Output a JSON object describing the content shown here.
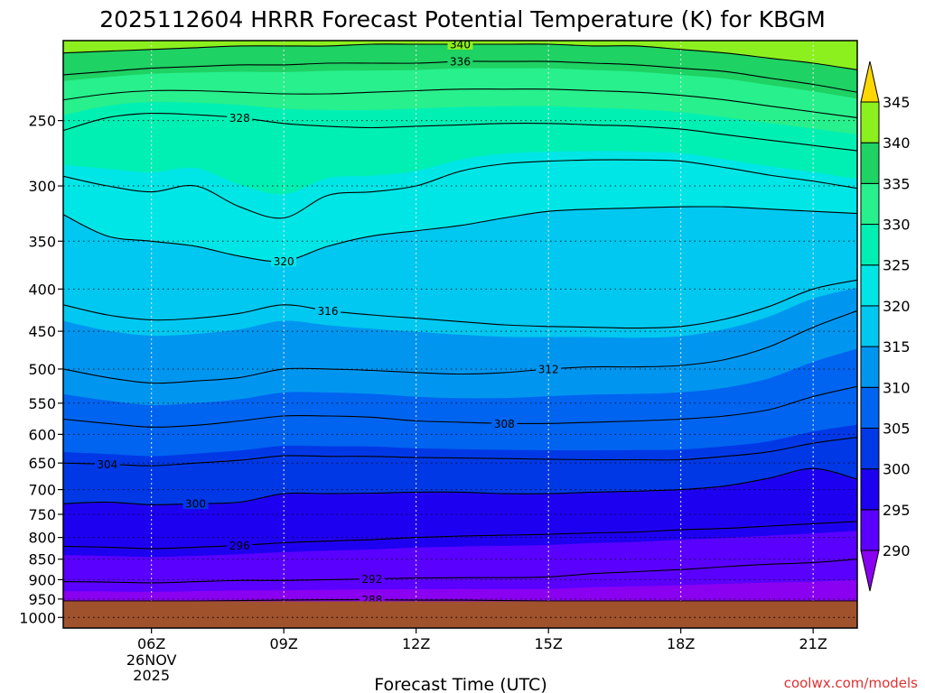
{
  "chart_data": {
    "type": "contour",
    "title": "2025112604 HRRR Forecast Potential Temperature (K) for KBGM",
    "xlabel": "Forecast Time (UTC)",
    "ylabel": "",
    "credit": "coolwx.com/models",
    "x_ticks": [
      {
        "hour": 6,
        "label": "06Z",
        "sub": [
          "26NOV",
          "2025"
        ]
      },
      {
        "hour": 9,
        "label": "09Z"
      },
      {
        "hour": 12,
        "label": "12Z"
      },
      {
        "hour": 15,
        "label": "15Z"
      },
      {
        "hour": 18,
        "label": "18Z"
      },
      {
        "hour": 21,
        "label": "21Z"
      }
    ],
    "xlim": [
      4,
      22
    ],
    "y_ticks": [
      250,
      300,
      350,
      400,
      450,
      500,
      550,
      600,
      650,
      700,
      750,
      800,
      850,
      900,
      950,
      1000
    ],
    "ylim": [
      200,
      1030
    ],
    "y_scale": "log",
    "grid": true,
    "surface_pressure_hpa": 956,
    "colorbar": {
      "levels": [
        290,
        295,
        300,
        305,
        310,
        315,
        320,
        325,
        330,
        335,
        340,
        345
      ],
      "colors": [
        "#8a00f0",
        "#5a00ff",
        "#1e00f0",
        "#0038e6",
        "#0064f0",
        "#0096f0",
        "#00c8f0",
        "#00e6e6",
        "#00f0b4",
        "#28f08c",
        "#1ed264",
        "#8cf01e",
        "#d2f01e",
        "#ffd700"
      ]
    },
    "times": [
      4,
      5,
      6,
      7,
      8,
      9,
      10,
      11,
      12,
      13,
      14,
      15,
      16,
      17,
      18,
      19,
      20,
      21,
      22
    ],
    "isentropes": [
      {
        "theta": 288,
        "label_at": 11,
        "p": [
          955,
          955,
          955,
          955,
          954,
          953,
          952,
          952,
          953,
          953,
          954,
          955,
          955,
          955,
          955,
          955,
          955,
          955,
          955
        ]
      },
      {
        "theta": 292,
        "label_at": 11,
        "p": [
          905,
          906,
          908,
          905,
          902,
          902,
          900,
          898,
          896,
          895,
          895,
          893,
          885,
          880,
          875,
          868,
          862,
          858,
          850
        ]
      },
      {
        "theta": 296,
        "label_at": 8,
        "p": [
          820,
          822,
          825,
          822,
          818,
          812,
          808,
          805,
          800,
          797,
          795,
          793,
          790,
          788,
          783,
          780,
          775,
          770,
          765
        ]
      },
      {
        "theta": 300,
        "label_at": 7,
        "p": [
          728,
          725,
          730,
          728,
          725,
          708,
          708,
          707,
          705,
          705,
          708,
          708,
          705,
          703,
          700,
          693,
          678,
          660,
          680
        ]
      },
      {
        "theta": 304,
        "label_at": 5,
        "p": [
          650,
          652,
          655,
          650,
          645,
          637,
          638,
          638,
          640,
          641,
          642,
          643,
          644,
          644,
          644,
          638,
          630,
          615,
          605
        ]
      },
      {
        "theta": 308,
        "label_at": 14,
        "p": [
          575,
          582,
          588,
          585,
          578,
          570,
          570,
          572,
          578,
          580,
          582,
          582,
          580,
          578,
          575,
          570,
          560,
          540,
          525
        ]
      },
      {
        "theta": 312,
        "label_at": 15,
        "p": [
          500,
          512,
          520,
          517,
          512,
          500,
          500,
          502,
          505,
          507,
          505,
          500,
          497,
          497,
          495,
          487,
          470,
          445,
          425
        ]
      },
      {
        "theta": 316,
        "label_at": 10,
        "p": [
          418,
          430,
          436,
          434,
          428,
          418,
          425,
          430,
          434,
          438,
          442,
          444,
          445,
          446,
          444,
          435,
          420,
          400,
          390
        ]
      },
      {
        "theta": 320,
        "label_at": 9,
        "p": [
          325,
          345,
          350,
          355,
          365,
          370,
          355,
          345,
          340,
          335,
          328,
          322,
          320,
          319,
          318,
          318,
          320,
          322,
          324
        ]
      },
      {
        "theta": 324,
        "label_at": -1,
        "p": [
          292,
          300,
          305,
          300,
          318,
          328,
          308,
          305,
          300,
          288,
          282,
          280,
          279,
          279,
          280,
          285,
          291,
          296,
          302
        ]
      },
      {
        "theta": 328,
        "label_at": 8,
        "p": [
          257,
          248,
          245,
          246,
          248,
          252,
          254,
          255,
          254,
          253,
          252,
          252,
          253,
          254,
          256,
          260,
          264,
          268,
          272
        ]
      },
      {
        "theta": 332,
        "label_at": -1,
        "p": [
          236,
          232,
          230,
          230,
          231,
          232,
          232,
          231,
          230,
          229,
          229,
          229,
          230,
          231,
          233,
          236,
          240,
          244,
          248
        ]
      },
      {
        "theta": 336,
        "label_at": 13,
        "p": [
          220,
          218,
          216,
          215,
          214,
          214,
          213,
          213,
          213,
          212,
          212,
          212,
          213,
          214,
          216,
          218,
          222,
          226,
          231
        ]
      },
      {
        "theta": 340,
        "label_at": 13,
        "p": [
          207,
          206,
          205,
          204,
          203,
          203,
          203,
          202,
          202,
          202,
          202,
          202,
          203,
          203,
          205,
          207,
          210,
          213,
          217
        ]
      }
    ]
  }
}
